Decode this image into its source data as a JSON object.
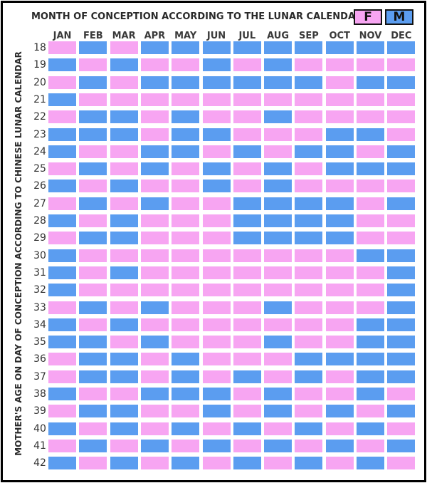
{
  "chart_data": {
    "type": "heatmap",
    "title": "MONTH OF CONCEPTION ACCORDING TO THE LUNAR CALENDAR",
    "ylabel": "MOTHER'S AGE ON DAY OF CONCEPTION ACCORDING TO CHINESE LUNAR CALENDAR",
    "legend": [
      {
        "label": "F",
        "color": "#f7a5f2"
      },
      {
        "label": "M",
        "color": "#5b9df0"
      }
    ],
    "months": [
      "JAN",
      "FEB",
      "MAR",
      "APR",
      "MAY",
      "JUN",
      "JUL",
      "AUG",
      "SEP",
      "OCT",
      "NOV",
      "DEC"
    ],
    "ages": [
      18,
      19,
      20,
      21,
      22,
      23,
      24,
      25,
      26,
      27,
      28,
      29,
      30,
      31,
      32,
      33,
      34,
      35,
      36,
      37,
      38,
      39,
      40,
      41,
      42
    ],
    "values": [
      [
        "F",
        "M",
        "F",
        "M",
        "M",
        "M",
        "M",
        "M",
        "M",
        "M",
        "M",
        "M"
      ],
      [
        "M",
        "F",
        "M",
        "F",
        "F",
        "M",
        "F",
        "M",
        "F",
        "F",
        "F",
        "F"
      ],
      [
        "F",
        "M",
        "F",
        "M",
        "M",
        "M",
        "M",
        "M",
        "M",
        "F",
        "M",
        "M"
      ],
      [
        "M",
        "F",
        "F",
        "F",
        "F",
        "F",
        "F",
        "F",
        "F",
        "F",
        "F",
        "F"
      ],
      [
        "F",
        "M",
        "M",
        "F",
        "M",
        "F",
        "F",
        "M",
        "F",
        "F",
        "F",
        "F"
      ],
      [
        "M",
        "M",
        "M",
        "F",
        "M",
        "M",
        "F",
        "F",
        "F",
        "M",
        "M",
        "F"
      ],
      [
        "M",
        "F",
        "F",
        "M",
        "M",
        "F",
        "M",
        "F",
        "M",
        "M",
        "F",
        "M"
      ],
      [
        "F",
        "M",
        "F",
        "M",
        "F",
        "M",
        "F",
        "M",
        "F",
        "M",
        "M",
        "M"
      ],
      [
        "M",
        "F",
        "M",
        "F",
        "F",
        "M",
        "F",
        "M",
        "F",
        "F",
        "F",
        "F"
      ],
      [
        "F",
        "M",
        "F",
        "M",
        "F",
        "F",
        "M",
        "M",
        "M",
        "M",
        "F",
        "M"
      ],
      [
        "M",
        "F",
        "M",
        "F",
        "F",
        "F",
        "M",
        "M",
        "M",
        "M",
        "F",
        "F"
      ],
      [
        "F",
        "M",
        "M",
        "F",
        "F",
        "F",
        "M",
        "M",
        "M",
        "M",
        "F",
        "F"
      ],
      [
        "M",
        "F",
        "F",
        "F",
        "F",
        "F",
        "F",
        "F",
        "F",
        "F",
        "M",
        "M"
      ],
      [
        "M",
        "F",
        "M",
        "F",
        "F",
        "F",
        "F",
        "F",
        "F",
        "F",
        "F",
        "M"
      ],
      [
        "M",
        "F",
        "F",
        "F",
        "F",
        "F",
        "F",
        "F",
        "F",
        "F",
        "F",
        "M"
      ],
      [
        "F",
        "M",
        "F",
        "M",
        "F",
        "F",
        "F",
        "M",
        "F",
        "F",
        "F",
        "M"
      ],
      [
        "M",
        "F",
        "M",
        "F",
        "F",
        "F",
        "F",
        "F",
        "F",
        "F",
        "M",
        "M"
      ],
      [
        "M",
        "M",
        "F",
        "M",
        "F",
        "F",
        "F",
        "M",
        "F",
        "F",
        "M",
        "M"
      ],
      [
        "F",
        "M",
        "M",
        "F",
        "M",
        "F",
        "F",
        "F",
        "M",
        "M",
        "M",
        "M"
      ],
      [
        "F",
        "M",
        "M",
        "F",
        "M",
        "F",
        "M",
        "F",
        "M",
        "F",
        "M",
        "M"
      ],
      [
        "M",
        "F",
        "F",
        "M",
        "M",
        "M",
        "F",
        "M",
        "F",
        "F",
        "M",
        "F"
      ],
      [
        "F",
        "M",
        "M",
        "F",
        "F",
        "M",
        "F",
        "M",
        "F",
        "M",
        "F",
        "M"
      ],
      [
        "M",
        "F",
        "M",
        "F",
        "M",
        "F",
        "M",
        "F",
        "M",
        "F",
        "M",
        "F"
      ],
      [
        "F",
        "M",
        "F",
        "M",
        "F",
        "M",
        "F",
        "M",
        "F",
        "M",
        "F",
        "M"
      ],
      [
        "M",
        "F",
        "M",
        "F",
        "M",
        "F",
        "M",
        "F",
        "M",
        "F",
        "M",
        "F"
      ]
    ]
  }
}
